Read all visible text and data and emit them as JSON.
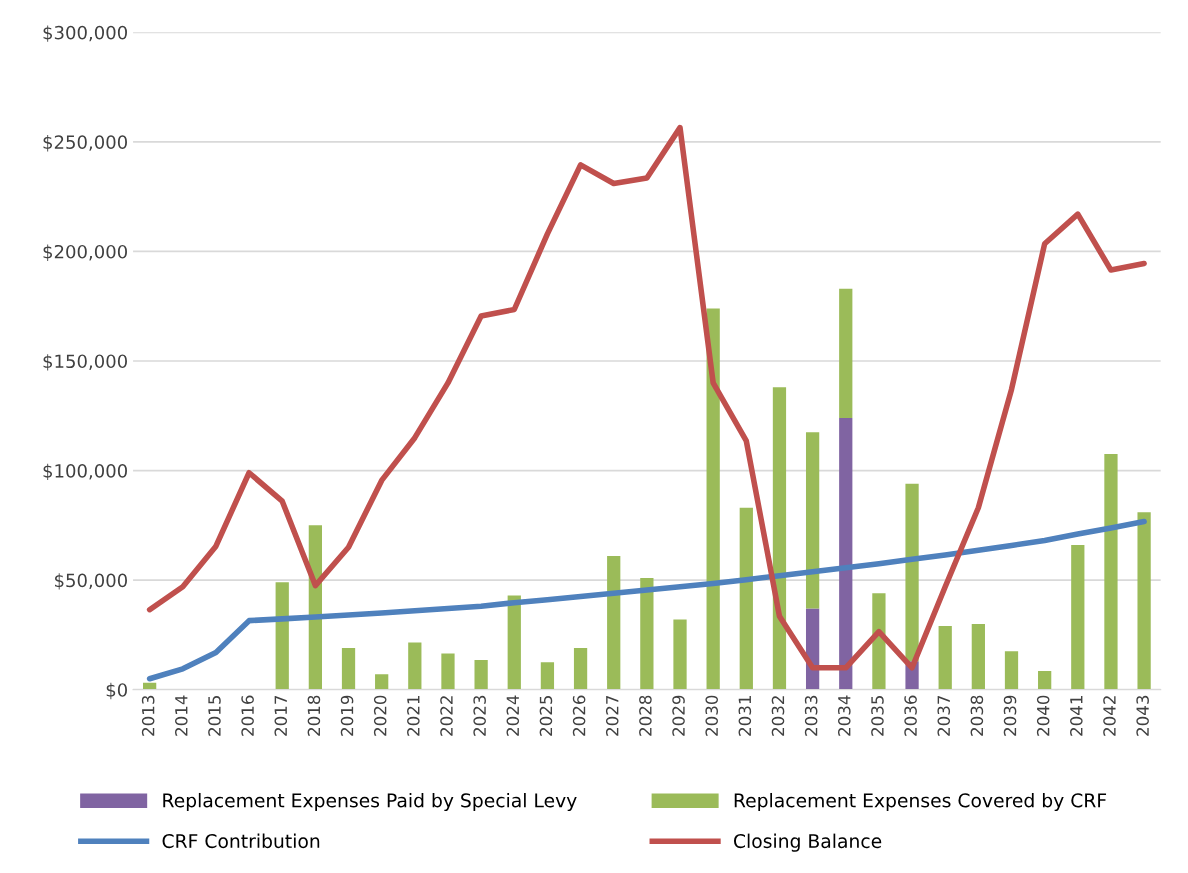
{
  "chart_data": {
    "type": "bar",
    "stacked": true,
    "grid": "y",
    "legend": "bottom",
    "categories": [
      "2013",
      "2014",
      "2015",
      "2016",
      "2017",
      "2018",
      "2019",
      "2020",
      "2021",
      "2022",
      "2023",
      "2024",
      "2025",
      "2026",
      "2027",
      "2028",
      "2029",
      "2030",
      "2031",
      "2032",
      "2033",
      "2034",
      "2035",
      "2036",
      "2037",
      "2038",
      "2039",
      "2040",
      "2041",
      "2042",
      "2043"
    ],
    "ylim": [
      0,
      300000
    ],
    "yticks": [
      {
        "value": 0,
        "label": "$0"
      },
      {
        "value": 50000,
        "label": "$50,000"
      },
      {
        "value": 100000,
        "label": "$100,000"
      },
      {
        "value": 150000,
        "label": "$150,000"
      },
      {
        "value": 200000,
        "label": "$200,000"
      },
      {
        "value": 250000,
        "label": "$250,000"
      },
      {
        "value": 300000,
        "label": "$300,000"
      }
    ],
    "series": [
      {
        "name": "Replacement Expenses Paid by Special Levy",
        "color": "#8064a2",
        "values": [
          0,
          0,
          0,
          0,
          0,
          0,
          0,
          0,
          0,
          0,
          0,
          0,
          0,
          0,
          0,
          0,
          0,
          0,
          0,
          0,
          37000,
          124000,
          0,
          13000,
          0,
          0,
          0,
          0,
          0,
          0,
          0
        ]
      },
      {
        "name": "Replacement Expenses Covered by CRF",
        "color": "#9bbb59",
        "values": [
          3200,
          0,
          0,
          0,
          49000,
          75000,
          19000,
          7000,
          21500,
          16500,
          13500,
          43000,
          12500,
          19000,
          61000,
          51000,
          32000,
          174000,
          83000,
          138000,
          80500,
          59000,
          44000,
          81000,
          29000,
          30000,
          17500,
          8500,
          66000,
          107500,
          81000
        ]
      },
      {
        "name": "CRF Contribution",
        "type": "line",
        "color": "#4f81bd",
        "values": [
          5000,
          9500,
          17000,
          31500,
          32300,
          33200,
          34100,
          35000,
          36000,
          37000,
          38100,
          39700,
          41000,
          42500,
          44000,
          45500,
          47000,
          48500,
          50200,
          52000,
          53800,
          55600,
          57500,
          59500,
          61500,
          63600,
          65800,
          68100,
          71000,
          73800,
          76700
        ]
      },
      {
        "name": "Closing Balance",
        "type": "line",
        "color": "#c0504d",
        "values": [
          36500,
          47000,
          65500,
          99000,
          86000,
          47500,
          65000,
          95500,
          115000,
          140000,
          170500,
          173500,
          208000,
          239500,
          231000,
          233500,
          256500,
          140000,
          113500,
          33500,
          10000,
          10000,
          26500,
          10000,
          47000,
          83000,
          137000,
          203500,
          217000,
          191500,
          194500
        ]
      }
    ]
  }
}
